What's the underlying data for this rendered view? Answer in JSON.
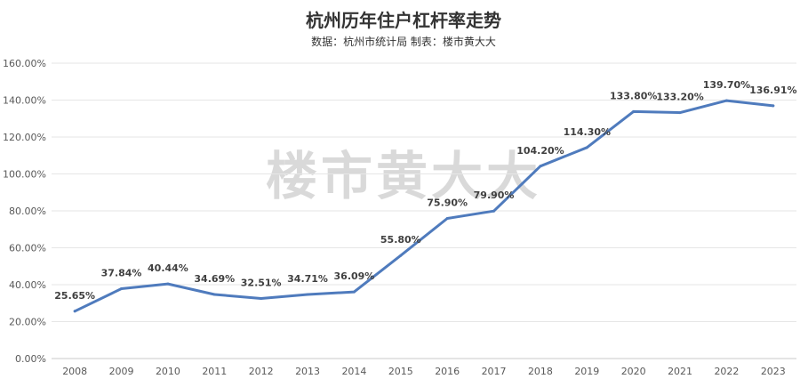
{
  "chart_data": {
    "type": "line",
    "title": "杭州历年住户杠杆率走势",
    "subtitle": "数据：杭州市统计局   制表：楼市黄大大",
    "watermark": "楼市黄大大",
    "categories": [
      "2008",
      "2009",
      "2010",
      "2011",
      "2012",
      "2013",
      "2014",
      "2015",
      "2016",
      "2017",
      "2018",
      "2019",
      "2020",
      "2021",
      "2022",
      "2023"
    ],
    "values": [
      25.65,
      37.84,
      40.44,
      34.69,
      32.51,
      34.71,
      36.09,
      55.8,
      75.9,
      79.9,
      104.2,
      114.3,
      133.8,
      133.2,
      139.7,
      136.91
    ],
    "data_labels": [
      "25.65%",
      "37.84%",
      "40.44%",
      "34.69%",
      "32.51%",
      "34.71%",
      "36.09%",
      "55.80%",
      "75.90%",
      "79.90%",
      "104.20%",
      "114.30%",
      "133.80%",
      "133.20%",
      "139.70%",
      "136.91%"
    ],
    "yticks": [
      "0.00%",
      "20.00%",
      "40.00%",
      "60.00%",
      "80.00%",
      "100.00%",
      "120.00%",
      "140.00%",
      "160.00%"
    ],
    "ylim": [
      0,
      160
    ],
    "grid": true,
    "line_color": "#4f7bbd",
    "grid_color": "#e6e6e6"
  }
}
